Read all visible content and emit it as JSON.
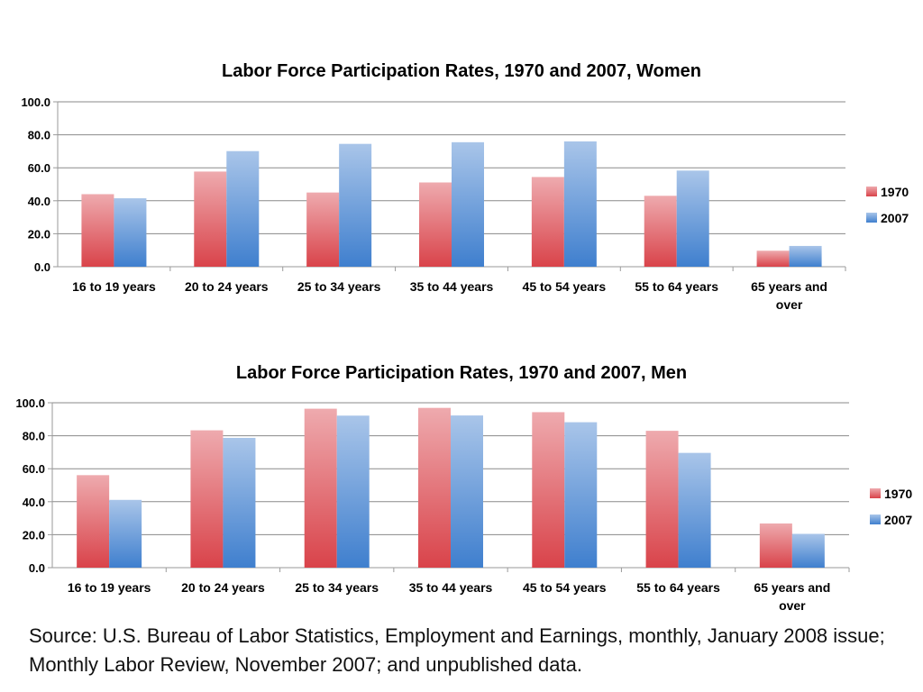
{
  "chart_data": [
    {
      "type": "bar",
      "title": "Labor Force Participation Rates, 1970 and 2007, Women",
      "categories": [
        "16 to 19 years",
        "20 to 24 years",
        "25 to 34 years",
        "35 to 44 years",
        "45 to 54 years",
        "55 to 64 years",
        "65 years and over"
      ],
      "series": [
        {
          "name": "1970",
          "values": [
            44.0,
            57.7,
            45.0,
            51.1,
            54.4,
            43.0,
            9.7
          ],
          "color": "#d9434a"
        },
        {
          "name": "2007",
          "values": [
            41.5,
            70.1,
            74.5,
            75.5,
            76.0,
            58.3,
            12.6
          ],
          "color": "#3f7fce"
        }
      ],
      "yticks": [
        "0.0",
        "20.0",
        "40.0",
        "60.0",
        "80.0",
        "100.0"
      ],
      "ylim": [
        0,
        100
      ],
      "grid": true,
      "legend": "right"
    },
    {
      "type": "bar",
      "title": "Labor Force Participation Rates, 1970 and 2007, Men",
      "categories": [
        "16 to 19 years",
        "20 to 24 years",
        "25 to 34 years",
        "35 to 44 years",
        "45 to 54 years",
        "55 to 64 years",
        "65 years and over"
      ],
      "series": [
        {
          "name": "1970",
          "values": [
            56.1,
            83.3,
            96.4,
            96.9,
            94.3,
            83.0,
            26.8
          ],
          "color": "#d9434a"
        },
        {
          "name": "2007",
          "values": [
            41.1,
            78.7,
            92.2,
            92.3,
            88.2,
            69.6,
            20.5
          ],
          "color": "#3f7fce"
        }
      ],
      "yticks": [
        "0.0",
        "20.0",
        "40.0",
        "60.0",
        "80.0",
        "100.0"
      ],
      "ylim": [
        0,
        100
      ],
      "grid": true,
      "legend": "right"
    }
  ],
  "source_note": "Source: U.S. Bureau of Labor Statistics, Employment and Earnings, monthly, January 2008 issue; Monthly Labor Review, November 2007; and unpublished data."
}
